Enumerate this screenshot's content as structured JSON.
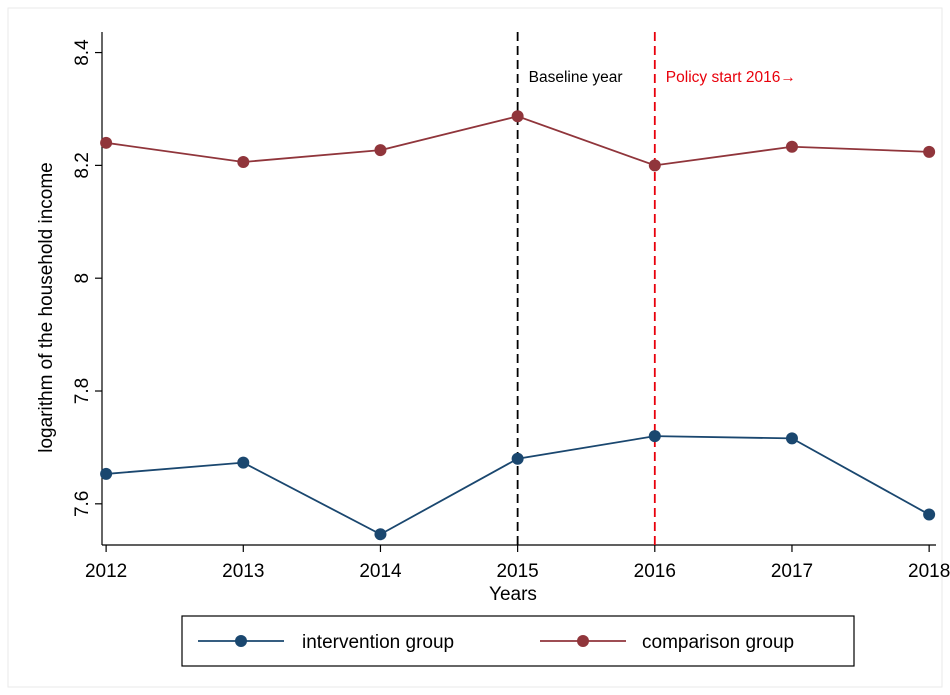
{
  "chart_data": {
    "type": "line",
    "title": "",
    "xlabel": "Years",
    "ylabel": "logarithm of the household income",
    "x": [
      2012,
      2013,
      2014,
      2015,
      2016,
      2017,
      2018
    ],
    "x_tick_labels": [
      "2012",
      "2013",
      "2014",
      "2015",
      "2016",
      "2017",
      "2018"
    ],
    "y_ticks": [
      7.6,
      7.8,
      8,
      8.2,
      8.4
    ],
    "y_tick_labels": [
      "7.6",
      "7.8",
      "8",
      "8.2",
      "8.4"
    ],
    "xlim": [
      2011.97,
      2018.05
    ],
    "ylim": [
      7.527,
      8.44
    ],
    "grid": false,
    "legend_position": "bottom",
    "series": [
      {
        "name": "intervention group",
        "color": "#1a476f",
        "marker": "circle",
        "values": [
          7.653,
          7.673,
          7.546,
          7.68,
          7.72,
          7.716,
          7.581
        ]
      },
      {
        "name": "comparison group",
        "color": "#90353b",
        "marker": "circle",
        "values": [
          8.24,
          8.206,
          8.227,
          8.287,
          8.2,
          8.233,
          8.224
        ]
      }
    ],
    "reference_lines": [
      {
        "x": 2015,
        "label": "Baseline year",
        "color": "#000000",
        "style": "dashed"
      },
      {
        "x": 2016,
        "label": "Policy start 2016→",
        "color": "#e8000b",
        "style": "dashed"
      }
    ]
  }
}
